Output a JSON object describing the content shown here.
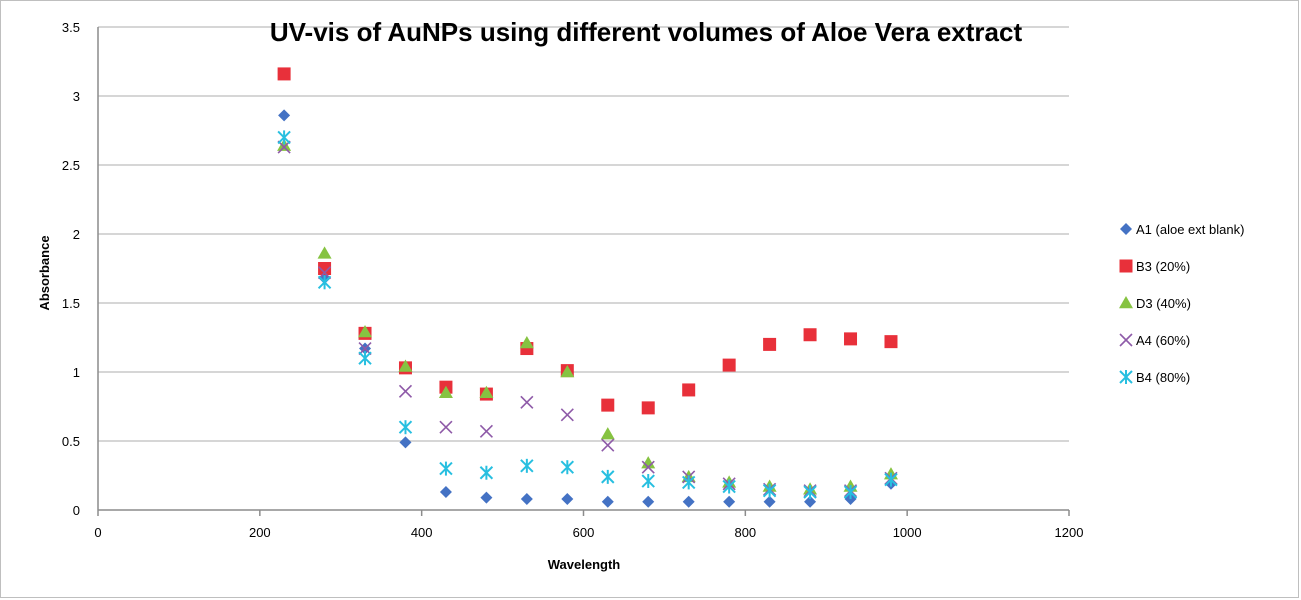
{
  "chart_data": {
    "type": "scatter",
    "title": "UV-vis of AuNPs using different volumes of Aloe Vera extract",
    "xlabel": "Wavelength",
    "ylabel": "Absorbance",
    "xlim": [
      0,
      1200
    ],
    "ylim": [
      0,
      3.5
    ],
    "x_ticks": [
      "0",
      "200",
      "400",
      "600",
      "800",
      "1000",
      "1200"
    ],
    "y_ticks": [
      "0",
      "0.5",
      "1",
      "1.5",
      "2",
      "2.5",
      "3",
      "3.5"
    ],
    "grid": "horizontal",
    "legend_position": "right",
    "x": [
      230,
      280,
      330,
      380,
      430,
      480,
      530,
      580,
      630,
      680,
      730,
      780,
      830,
      880,
      930,
      980
    ],
    "series": [
      {
        "name": "A1 (aloe ext blank)",
        "marker": "diamond",
        "color": "#4472c4",
        "values": [
          2.86,
          1.68,
          1.17,
          0.49,
          0.13,
          0.09,
          0.08,
          0.08,
          0.06,
          0.06,
          0.06,
          0.06,
          0.06,
          0.06,
          0.08,
          0.19
        ]
      },
      {
        "name": "B3 (20%)",
        "marker": "square",
        "color": "#e8303a",
        "values": [
          3.16,
          1.75,
          1.28,
          1.03,
          0.89,
          0.84,
          1.17,
          1.01,
          0.76,
          0.74,
          0.87,
          1.05,
          1.2,
          1.27,
          1.24,
          1.22
        ]
      },
      {
        "name": "D3 (40%)",
        "marker": "triangle",
        "color": "#86c341",
        "values": [
          2.64,
          1.86,
          1.29,
          1.04,
          0.85,
          0.85,
          1.21,
          1.0,
          0.55,
          0.34,
          0.24,
          0.2,
          0.17,
          0.15,
          0.17,
          0.26
        ]
      },
      {
        "name": "A4 (60%)",
        "marker": "x",
        "color": "#8e5aa8",
        "values": [
          2.63,
          1.72,
          1.17,
          0.86,
          0.6,
          0.57,
          0.78,
          0.69,
          0.47,
          0.31,
          0.24,
          0.19,
          0.15,
          0.14,
          0.14,
          0.23
        ]
      },
      {
        "name": "B4 (80%)",
        "marker": "star",
        "color": "#27bfe0",
        "values": [
          2.7,
          1.65,
          1.1,
          0.6,
          0.3,
          0.27,
          0.32,
          0.31,
          0.24,
          0.21,
          0.2,
          0.17,
          0.14,
          0.13,
          0.13,
          0.22
        ]
      }
    ]
  }
}
